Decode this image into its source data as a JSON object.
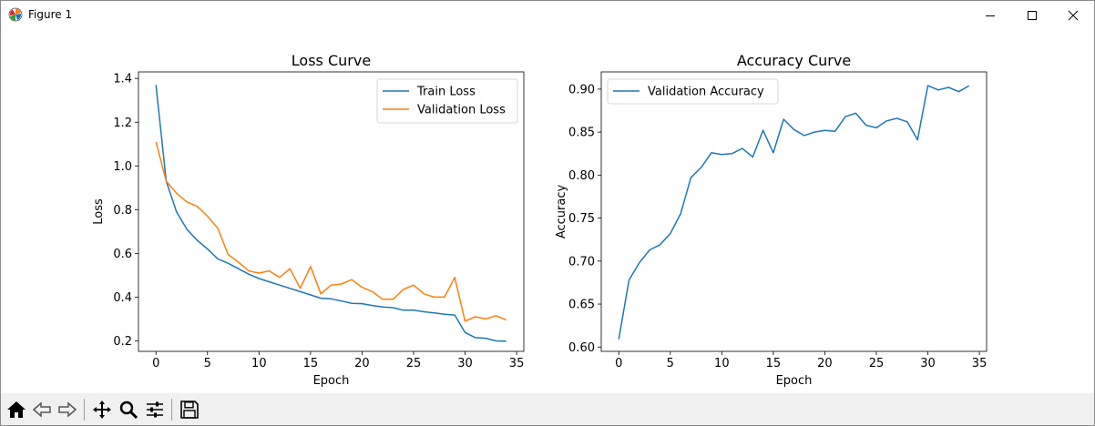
{
  "window": {
    "title": "Figure 1",
    "icons": {
      "app": "matplotlib-icon",
      "minimize": "minimize-icon",
      "maximize": "maximize-icon",
      "close": "close-icon"
    }
  },
  "toolbar": {
    "buttons": [
      "home-icon",
      "back-icon",
      "forward-icon",
      "pan-icon",
      "zoom-icon",
      "configure-subplots-icon",
      "save-icon"
    ]
  },
  "chart_data": [
    {
      "type": "line",
      "title": "Loss Curve",
      "xlabel": "Epoch",
      "ylabel": "Loss",
      "xlim": [
        -1.7,
        35.7
      ],
      "ylim": [
        0.152,
        1.43
      ],
      "xticks": [
        0,
        5,
        10,
        15,
        20,
        25,
        30,
        35
      ],
      "yticks": [
        0.2,
        0.4,
        0.6,
        0.8,
        1.0,
        1.2,
        1.4
      ],
      "ytick_labels": [
        "0.2",
        "0.4",
        "0.6",
        "0.8",
        "1.0",
        "1.2",
        "1.4"
      ],
      "legend": "upper right",
      "x": [
        0,
        1,
        2,
        3,
        4,
        5,
        6,
        7,
        8,
        9,
        10,
        11,
        12,
        13,
        14,
        15,
        16,
        17,
        18,
        19,
        20,
        21,
        22,
        23,
        24,
        25,
        26,
        27,
        28,
        29,
        30,
        31,
        32,
        33,
        34
      ],
      "series": [
        {
          "name": "Train Loss",
          "color": "#1f77b4",
          "values": [
            1.37,
            0.93,
            0.79,
            0.71,
            0.66,
            0.62,
            0.575,
            0.555,
            0.53,
            0.505,
            0.485,
            0.47,
            0.455,
            0.44,
            0.425,
            0.41,
            0.395,
            0.392,
            0.382,
            0.372,
            0.37,
            0.362,
            0.355,
            0.352,
            0.34,
            0.34,
            0.333,
            0.328,
            0.322,
            0.318,
            0.238,
            0.215,
            0.212,
            0.2,
            0.198
          ]
        },
        {
          "name": "Validation Loss",
          "color": "#ff7f0e",
          "values": [
            1.11,
            0.93,
            0.875,
            0.835,
            0.815,
            0.77,
            0.715,
            0.595,
            0.56,
            0.52,
            0.51,
            0.52,
            0.49,
            0.53,
            0.44,
            0.54,
            0.415,
            0.455,
            0.46,
            0.48,
            0.445,
            0.425,
            0.39,
            0.39,
            0.435,
            0.455,
            0.415,
            0.4,
            0.4,
            0.49,
            0.29,
            0.31,
            0.3,
            0.315,
            0.295
          ]
        }
      ]
    },
    {
      "type": "line",
      "title": "Accuracy Curve",
      "xlabel": "Epoch",
      "ylabel": "Accuracy",
      "xlim": [
        -1.7,
        35.7
      ],
      "ylim": [
        0.595,
        0.92
      ],
      "xticks": [
        0,
        5,
        10,
        15,
        20,
        25,
        30,
        35
      ],
      "yticks": [
        0.6,
        0.65,
        0.7,
        0.75,
        0.8,
        0.85,
        0.9
      ],
      "ytick_labels": [
        "0.60",
        "0.65",
        "0.70",
        "0.75",
        "0.80",
        "0.85",
        "0.90"
      ],
      "legend": "upper left",
      "x": [
        0,
        1,
        2,
        3,
        4,
        5,
        6,
        7,
        8,
        9,
        10,
        11,
        12,
        13,
        14,
        15,
        16,
        17,
        18,
        19,
        20,
        21,
        22,
        23,
        24,
        25,
        26,
        27,
        28,
        29,
        30,
        31,
        32,
        33,
        34
      ],
      "series": [
        {
          "name": "Validation Accuracy",
          "color": "#1f77b4",
          "values": [
            0.609,
            0.678,
            0.698,
            0.713,
            0.719,
            0.732,
            0.755,
            0.797,
            0.809,
            0.826,
            0.824,
            0.825,
            0.831,
            0.821,
            0.852,
            0.826,
            0.865,
            0.853,
            0.846,
            0.85,
            0.852,
            0.851,
            0.868,
            0.872,
            0.858,
            0.855,
            0.863,
            0.866,
            0.862,
            0.841,
            0.904,
            0.899,
            0.902,
            0.897,
            0.904
          ]
        }
      ]
    }
  ]
}
